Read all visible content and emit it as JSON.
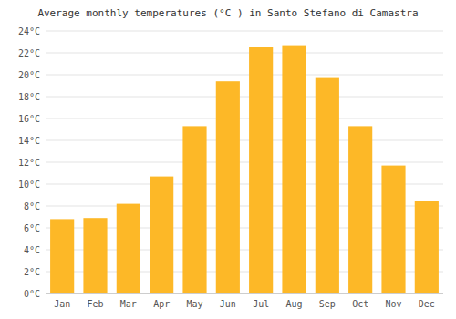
{
  "chart_data": {
    "type": "bar",
    "title": "Average monthly temperatures (°C ) in Santo Stefano di Camastra",
    "categories": [
      "Jan",
      "Feb",
      "Mar",
      "Apr",
      "May",
      "Jun",
      "Jul",
      "Aug",
      "Sep",
      "Oct",
      "Nov",
      "Dec"
    ],
    "values": [
      6.8,
      6.9,
      8.2,
      10.7,
      15.3,
      19.4,
      22.5,
      22.7,
      19.7,
      15.3,
      11.7,
      8.5
    ],
    "color": "#FDB827",
    "ylim": [
      0,
      24
    ],
    "yticks": [
      {
        "value": 0,
        "label": "0°C"
      },
      {
        "value": 2,
        "label": "2°C"
      },
      {
        "value": 4,
        "label": "4°C"
      },
      {
        "value": 6,
        "label": "6°C"
      },
      {
        "value": 8,
        "label": "8°C"
      },
      {
        "value": 10,
        "label": "10°C"
      },
      {
        "value": 12,
        "label": "12°C"
      },
      {
        "value": 14,
        "label": "14°C"
      },
      {
        "value": 16,
        "label": "16°C"
      },
      {
        "value": 18,
        "label": "18°C"
      },
      {
        "value": 20,
        "label": "20°C"
      },
      {
        "value": 22,
        "label": "22°C"
      },
      {
        "value": 24,
        "label": "24°C"
      }
    ],
    "grid": true
  }
}
